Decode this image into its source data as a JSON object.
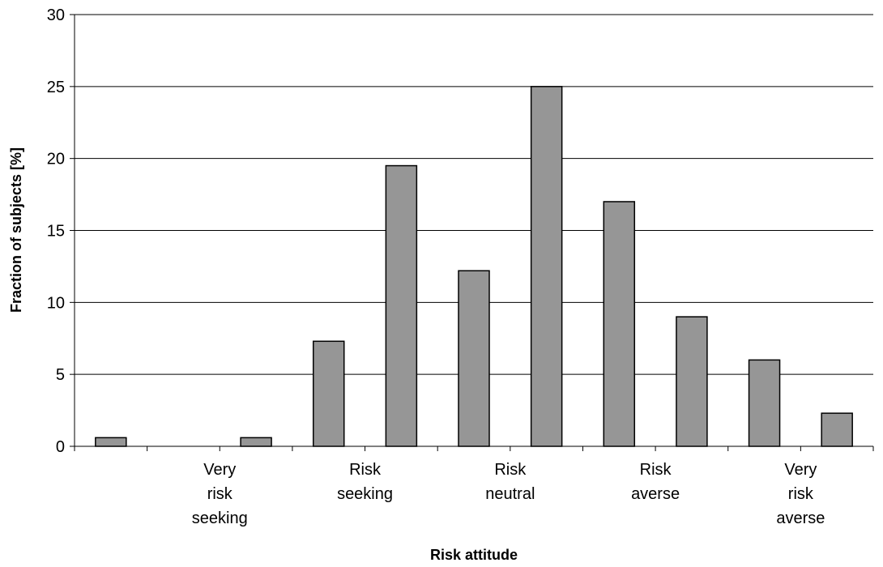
{
  "chart_data": {
    "type": "bar",
    "title": "",
    "xlabel": "Risk attitude",
    "ylabel": "Fraction of subjects [%]",
    "ylim": [
      0,
      30
    ],
    "yticks": [
      0,
      5,
      10,
      15,
      20,
      25,
      30
    ],
    "grid": true,
    "legend": "none",
    "bar_color": "#969696",
    "bar_stroke": "#000000",
    "gridline_color": "#000000",
    "values": [
      0.6,
      0,
      0.6,
      7.3,
      19.5,
      12.2,
      25,
      17,
      9,
      6,
      2.3
    ],
    "category_labels": [
      {
        "lines": [
          "Very",
          "risk",
          "seeking"
        ],
        "between_bars": [
          1,
          2
        ]
      },
      {
        "lines": [
          "Risk",
          "seeking"
        ],
        "between_bars": [
          3,
          4
        ]
      },
      {
        "lines": [
          "Risk",
          "neutral"
        ],
        "between_bars": [
          5,
          6
        ]
      },
      {
        "lines": [
          "Risk",
          "averse"
        ],
        "between_bars": [
          7,
          8
        ]
      },
      {
        "lines": [
          "Very",
          "risk",
          "averse"
        ],
        "between_bars": [
          9,
          10
        ]
      }
    ]
  }
}
